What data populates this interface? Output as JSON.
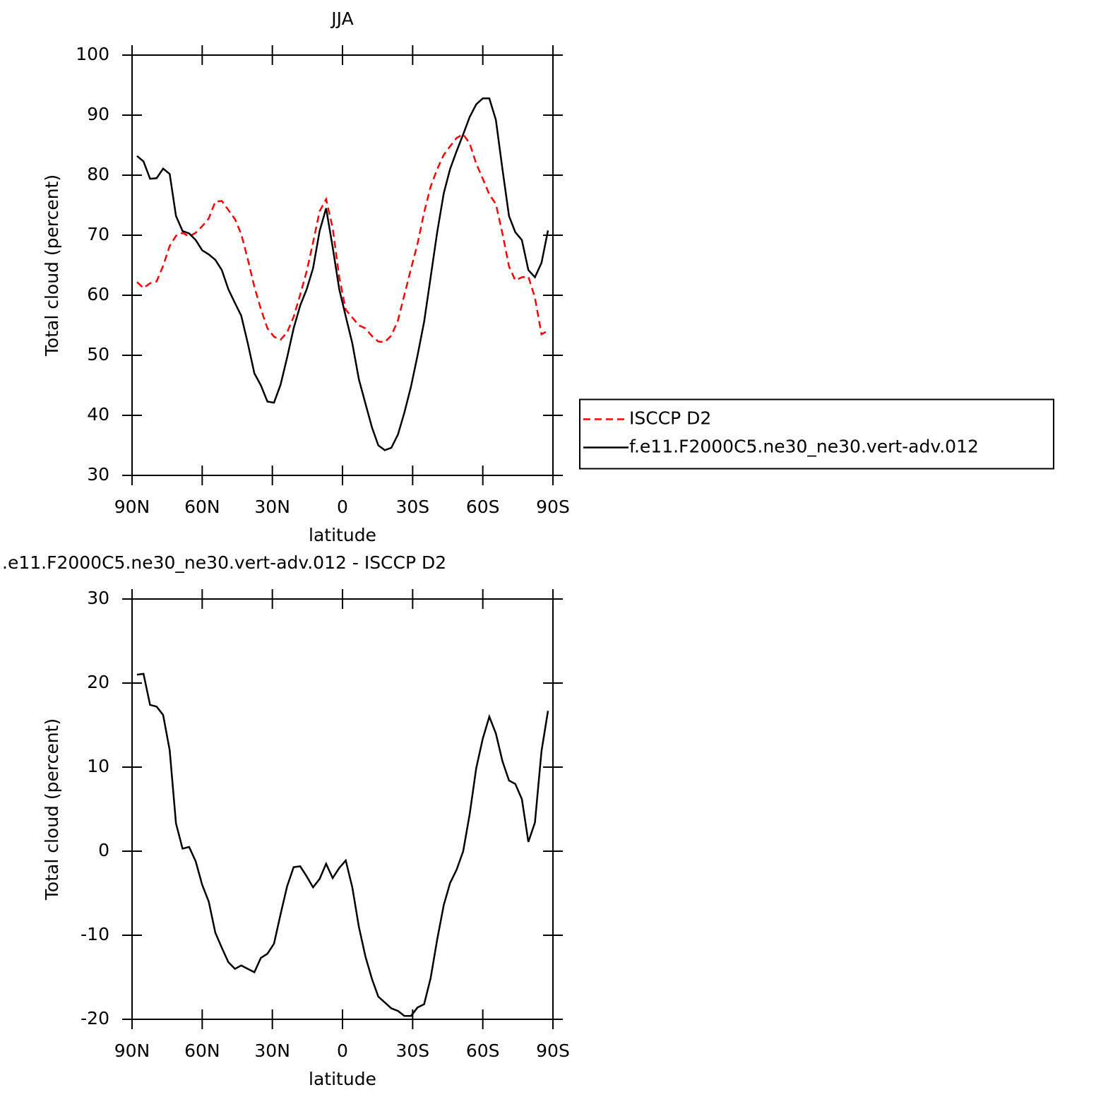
{
  "chart_data": [
    {
      "type": "line",
      "title": "JJA",
      "xlabel": "latitude",
      "ylabel": "Total cloud (percent)",
      "x": [
        87.9,
        85.1,
        82.3,
        79.5,
        76.7,
        73.9,
        71.2,
        68.4,
        65.6,
        62.8,
        60.0,
        57.2,
        54.4,
        51.6,
        48.8,
        46.0,
        43.3,
        40.5,
        37.7,
        34.9,
        32.1,
        29.3,
        26.5,
        23.7,
        20.9,
        18.1,
        15.3,
        12.6,
        9.8,
        7.0,
        4.2,
        1.4,
        -1.4,
        -4.2,
        -7.0,
        -9.8,
        -12.6,
        -15.3,
        -18.1,
        -20.9,
        -23.7,
        -26.5,
        -29.3,
        -32.1,
        -34.9,
        -37.7,
        -40.5,
        -43.3,
        -46.0,
        -48.8,
        -51.6,
        -54.4,
        -57.2,
        -60.0,
        -62.8,
        -65.6,
        -68.4,
        -71.2,
        -73.9,
        -76.7,
        -79.5,
        -82.3,
        -85.1,
        -87.9
      ],
      "xlim": [
        90,
        -90
      ],
      "xticks": [
        {
          "value": 90,
          "label": "90N"
        },
        {
          "value": 60,
          "label": "60N"
        },
        {
          "value": 30,
          "label": "30N"
        },
        0,
        {
          "value": -30,
          "label": "30S"
        },
        {
          "value": -60,
          "label": "60S"
        },
        {
          "value": -90,
          "label": "90S"
        }
      ],
      "ylim": [
        30,
        100
      ],
      "yticks": [
        30,
        40,
        50,
        60,
        70,
        80,
        90,
        100
      ],
      "legend": "right",
      "series": [
        {
          "name": "ISCCP D2",
          "color": "#ff0000",
          "line_style": "dashed",
          "values": [
            62.2,
            61.2,
            62,
            62.3,
            64.9,
            68.2,
            69.9,
            70.4,
            69.8,
            70.4,
            71.5,
            72.8,
            75.6,
            75.7,
            74.2,
            72.7,
            70.2,
            66,
            61.4,
            57.7,
            54.5,
            53.1,
            52.6,
            53.8,
            56.4,
            60.1,
            64,
            68.8,
            74,
            76,
            71.2,
            63,
            57.6,
            56.3,
            55,
            54.5,
            53.2,
            52.3,
            52.2,
            53.3,
            55.8,
            60.1,
            64.4,
            68.6,
            73.8,
            78.1,
            81,
            83.4,
            84.8,
            86.2,
            86.8,
            85.3,
            81.9,
            79.4,
            76.8,
            75.2,
            70.3,
            64.8,
            62.5,
            63,
            63.1,
            59.6,
            53.5,
            54.1
          ]
        },
        {
          "name": "f.e11.F2000C5.ne30_ne30.vert-adv.012",
          "color": "#000000",
          "line_style": "solid",
          "values": [
            83.2,
            82.3,
            79.4,
            79.5,
            81.1,
            80.2,
            73.2,
            70.7,
            70.3,
            69.2,
            67.5,
            66.8,
            65.9,
            64.2,
            61,
            58.7,
            56.6,
            52,
            47,
            45,
            42.3,
            42.1,
            45.1,
            49.6,
            54.5,
            58.3,
            61,
            64.5,
            70.7,
            74.5,
            68,
            61,
            56.5,
            52,
            46,
            42,
            38,
            35,
            34.2,
            34.6,
            36.8,
            40.5,
            44.8,
            50,
            55.6,
            63,
            70.5,
            77,
            81,
            84,
            86.8,
            89.7,
            91.8,
            92.8,
            92.8,
            89.2,
            81,
            73.2,
            70.5,
            69.2,
            64.2,
            63,
            65.4,
            70.8
          ]
        }
      ]
    },
    {
      "type": "line",
      "title": ".e11.F2000C5.ne30_ne30.vert-adv.012 - ISCCP D2",
      "xlabel": "latitude",
      "ylabel": "Total cloud (percent)",
      "x": [
        87.9,
        85.1,
        82.3,
        79.5,
        76.7,
        73.9,
        71.2,
        68.4,
        65.6,
        62.8,
        60.0,
        57.2,
        54.4,
        51.6,
        48.8,
        46.0,
        43.3,
        40.5,
        37.7,
        34.9,
        32.1,
        29.3,
        26.5,
        23.7,
        20.9,
        18.1,
        15.3,
        12.6,
        9.8,
        7.0,
        4.2,
        1.4,
        -1.4,
        -4.2,
        -7.0,
        -9.8,
        -12.6,
        -15.3,
        -18.1,
        -20.9,
        -23.7,
        -26.5,
        -29.3,
        -32.1,
        -34.9,
        -37.7,
        -40.5,
        -43.3,
        -46.0,
        -48.8,
        -51.6,
        -54.4,
        -57.2,
        -60.0,
        -62.8,
        -65.6,
        -68.4,
        -71.2,
        -73.9,
        -76.7,
        -79.5,
        -82.3,
        -85.1,
        -87.9
      ],
      "xlim": [
        90,
        -90
      ],
      "xticks": [
        {
          "value": 90,
          "label": "90N"
        },
        {
          "value": 60,
          "label": "60N"
        },
        {
          "value": 30,
          "label": "30N"
        },
        0,
        {
          "value": -30,
          "label": "30S"
        },
        {
          "value": -60,
          "label": "60S"
        },
        {
          "value": -90,
          "label": "90S"
        }
      ],
      "ylim": [
        -20,
        30
      ],
      "yticks": [
        -20,
        -10,
        0,
        10,
        20,
        30
      ],
      "series": [
        {
          "color": "#000000",
          "line_style": "solid",
          "values": [
            21,
            21.1,
            17.4,
            17.2,
            16.2,
            12,
            3.3,
            0.3,
            0.5,
            -1.2,
            -4,
            -6,
            -9.7,
            -11.5,
            -13.2,
            -14,
            -13.6,
            -14,
            -14.4,
            -12.7,
            -12.2,
            -11,
            -7.5,
            -4.2,
            -1.9,
            -1.8,
            -3,
            -4.3,
            -3.3,
            -1.5,
            -3.2,
            -2,
            -1.1,
            -4.3,
            -9,
            -12.5,
            -15.2,
            -17.3,
            -18,
            -18.7,
            -19,
            -19.6,
            -19.6,
            -18.6,
            -18.2,
            -15.1,
            -10.5,
            -6.4,
            -3.8,
            -2.2,
            0,
            4.4,
            9.9,
            13.4,
            16,
            14,
            10.7,
            8.4,
            8,
            6.2,
            1.1,
            3.4,
            11.9,
            16.7
          ]
        }
      ]
    }
  ]
}
